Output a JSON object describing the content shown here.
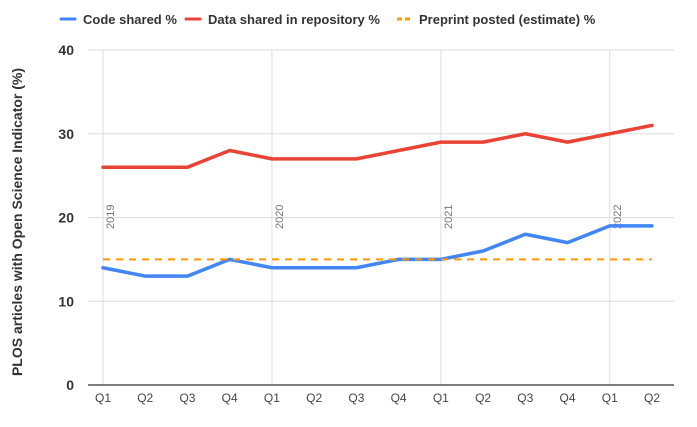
{
  "chart_data": {
    "type": "line",
    "title": "",
    "xlabel": "",
    "ylabel": "PLOS articles with Open Science Indicator (%)",
    "ylim": [
      0,
      40
    ],
    "yticks": [
      0,
      10,
      20,
      30,
      40
    ],
    "grid": true,
    "legend_position": "top",
    "categories": [
      "Q1",
      "Q2",
      "Q3",
      "Q4",
      "Q1",
      "Q2",
      "Q3",
      "Q4",
      "Q1",
      "Q2",
      "Q3",
      "Q4",
      "Q1",
      "Q2"
    ],
    "year_labels": [
      {
        "label": "2019",
        "index": 0
      },
      {
        "label": "2020",
        "index": 4
      },
      {
        "label": "2021",
        "index": 8
      },
      {
        "label": "2022",
        "index": 12
      }
    ],
    "series": [
      {
        "name": "Code shared %",
        "color": "#4285f4",
        "style": "solid",
        "values": [
          14,
          13,
          13,
          15,
          14,
          14,
          14,
          15,
          15,
          16,
          18,
          17,
          19,
          19
        ]
      },
      {
        "name": "Data shared in repository %",
        "color": "#ea4335",
        "style": "solid",
        "values": [
          26,
          26,
          26,
          28,
          27,
          27,
          27,
          28,
          29,
          29,
          30,
          29,
          30,
          31
        ]
      },
      {
        "name": "Preprint posted (estimate) %",
        "color": "#ff9900",
        "style": "dashed",
        "values": [
          15,
          15,
          15,
          15,
          15,
          15,
          15,
          15,
          15,
          15,
          15,
          15,
          15,
          15
        ]
      }
    ]
  }
}
